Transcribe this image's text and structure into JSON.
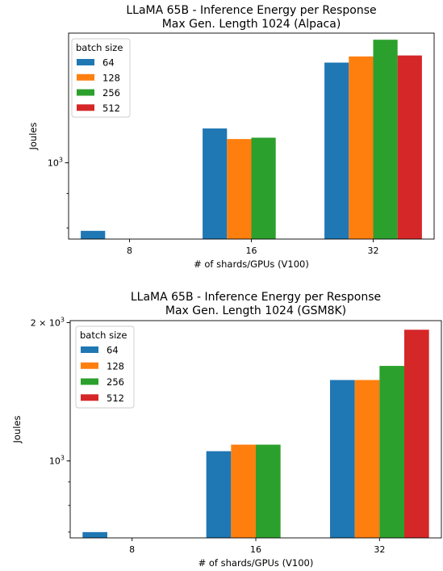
{
  "chart_data": [
    {
      "type": "bar",
      "title": [
        "LLaMA 65B - Inference Energy per Response",
        "Max Gen. Length 1024 (Alpaca)"
      ],
      "xlabel": "# of shards/GPUs (V100)",
      "ylabel": "Joules",
      "yscale": "log",
      "ylim": [
        770,
        1560
      ],
      "yticks": [
        {
          "value": 1000,
          "base": "10",
          "exp": "3"
        }
      ],
      "categories": [
        "8",
        "16",
        "32"
      ],
      "legend_title": "batch size",
      "legend_position": "top-left",
      "series": [
        {
          "name": "64",
          "color": "#1f77b4",
          "values": [
            792,
            1125,
            1410
          ]
        },
        {
          "name": "128",
          "color": "#ff7f0e",
          "values": [
            null,
            1085,
            1440
          ]
        },
        {
          "name": "256",
          "color": "#2ca02c",
          "values": [
            null,
            1090,
            1525
          ]
        },
        {
          "name": "512",
          "color": "#d62728",
          "values": [
            null,
            null,
            1445
          ]
        }
      ]
    },
    {
      "type": "bar",
      "title": [
        "LLaMA 65B - Inference Energy per Response",
        "Max Gen. Length 1024 (GSM8K)"
      ],
      "xlabel": "# of shards/GPUs (V100)",
      "ylabel": "Joules",
      "yscale": "log",
      "ylim": [
        680,
        2020
      ],
      "yticks": [
        {
          "value": 1000,
          "base": "10",
          "exp": "3"
        },
        {
          "value": 2000,
          "base": "2 × 10",
          "exp": "3"
        }
      ],
      "categories": [
        "8",
        "16",
        "32"
      ],
      "legend_title": "batch size",
      "legend_position": "top-left",
      "series": [
        {
          "name": "64",
          "color": "#1f77b4",
          "values": [
            700,
            1050,
            1500
          ]
        },
        {
          "name": "128",
          "color": "#ff7f0e",
          "values": [
            null,
            1085,
            1500
          ]
        },
        {
          "name": "256",
          "color": "#2ca02c",
          "values": [
            null,
            1085,
            1610
          ]
        },
        {
          "name": "512",
          "color": "#d62728",
          "values": [
            null,
            null,
            1930
          ]
        }
      ]
    }
  ]
}
